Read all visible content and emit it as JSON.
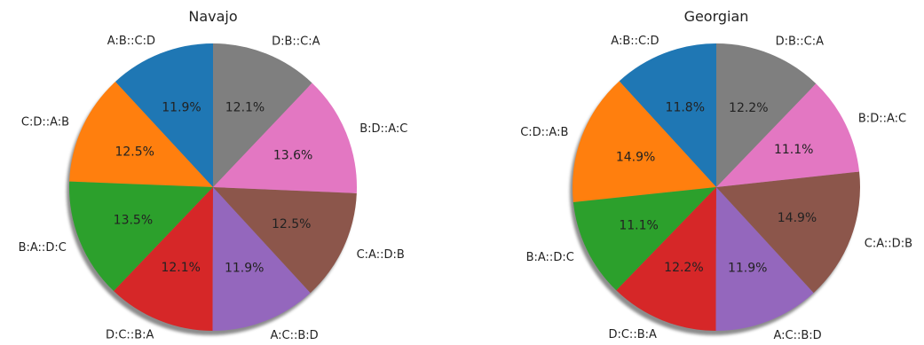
{
  "chart_data": [
    {
      "type": "pie",
      "title": "Navajo",
      "categories": [
        "A:B::C:D",
        "C:D::A:B",
        "B:A::D:C",
        "D:C::B:A",
        "A:C::B:D",
        "C:A::D:B",
        "B:D::A:C",
        "D:B::C:A"
      ],
      "values": [
        11.9,
        12.5,
        13.5,
        12.1,
        11.9,
        12.5,
        13.6,
        12.1
      ],
      "percent_labels": [
        "11.9%",
        "12.5%",
        "13.5%",
        "12.1%",
        "11.9%",
        "12.5%",
        "13.6%",
        "12.1%"
      ],
      "colors": [
        "#1f77b4",
        "#ff7f0e",
        "#2ca02c",
        "#d62728",
        "#9467bd",
        "#8c564b",
        "#e377c2",
        "#7f7f7f"
      ],
      "start_angle_deg": 90,
      "direction": "counterclockwise",
      "shadow": true
    },
    {
      "type": "pie",
      "title": "Georgian",
      "categories": [
        "A:B::C:D",
        "C:D::A:B",
        "B:A::D:C",
        "D:C::B:A",
        "A:C::B:D",
        "C:A::D:B",
        "B:D::A:C",
        "D:B::C:A"
      ],
      "values": [
        11.8,
        14.9,
        11.1,
        12.2,
        11.9,
        14.9,
        11.1,
        12.2
      ],
      "percent_labels": [
        "11.8%",
        "14.9%",
        "11.1%",
        "12.2%",
        "11.9%",
        "14.9%",
        "11.1%",
        "12.2%"
      ],
      "colors": [
        "#1f77b4",
        "#ff7f0e",
        "#2ca02c",
        "#d62728",
        "#9467bd",
        "#8c564b",
        "#e377c2",
        "#7f7f7f"
      ],
      "start_angle_deg": 90,
      "direction": "counterclockwise",
      "shadow": true
    }
  ]
}
